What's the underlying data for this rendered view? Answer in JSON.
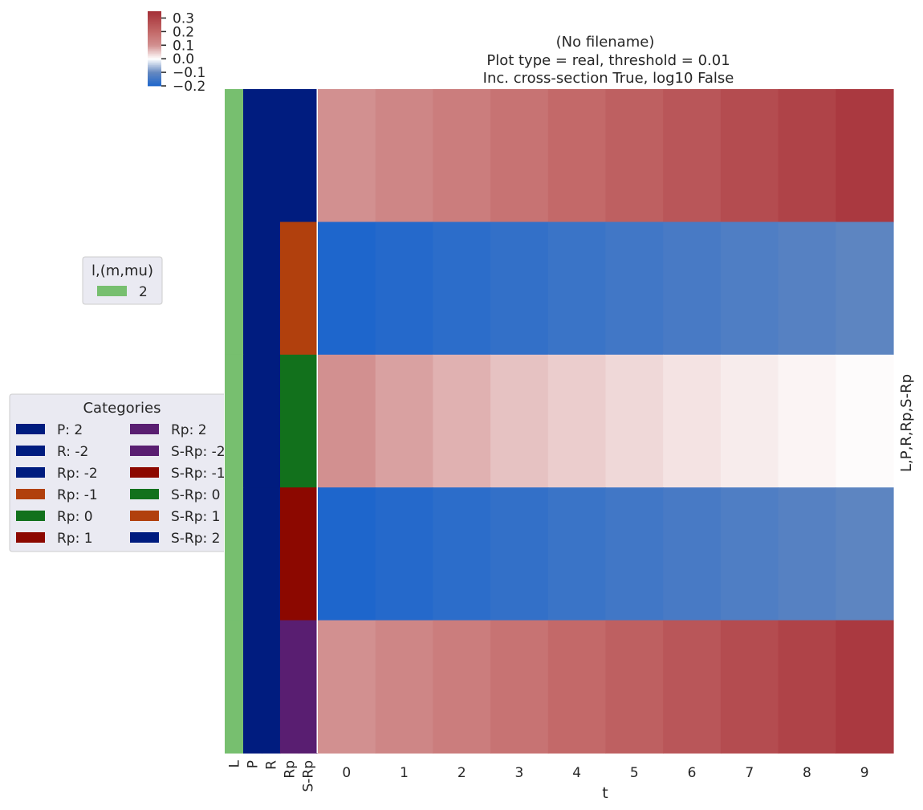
{
  "chart_data": {
    "type": "heatmap",
    "title_lines": [
      "(No filename)",
      "Plot type = real, threshold = 0.01",
      "Inc. cross-section True, log10 False"
    ],
    "xlabel": "t",
    "ylabel": "L,P,R,Rp,S-Rp",
    "x_ticks": [
      "0",
      "1",
      "2",
      "3",
      "4",
      "5",
      "6",
      "7",
      "8",
      "9"
    ],
    "row_colors_labels": [
      "L",
      "P",
      "R",
      "Rp",
      "S-Rp"
    ],
    "row_colors": [
      [
        "#77bf6f",
        "#001c7f",
        "#001c7f",
        "#001c7f",
        "#001c7f"
      ],
      [
        "#77bf6f",
        "#001c7f",
        "#001c7f",
        "#b1400d",
        "#b1400d"
      ],
      [
        "#77bf6f",
        "#001c7f",
        "#001c7f",
        "#12711c",
        "#12711c"
      ],
      [
        "#77bf6f",
        "#001c7f",
        "#001c7f",
        "#8c0800",
        "#8c0800"
      ],
      [
        "#77bf6f",
        "#001c7f",
        "#001c7f",
        "#591e71",
        "#591e71"
      ]
    ],
    "values": [
      [
        0.1,
        0.125,
        0.15,
        0.175,
        0.2,
        0.225,
        0.25,
        0.275,
        0.3,
        0.325
      ],
      [
        -0.2,
        -0.19,
        -0.18,
        -0.17,
        -0.16,
        -0.15,
        -0.14,
        -0.13,
        -0.12,
        -0.11
      ],
      [
        0.1,
        0.085,
        0.07,
        0.055,
        0.045,
        0.035,
        0.025,
        0.017,
        0.01,
        0.004
      ],
      [
        -0.2,
        -0.19,
        -0.18,
        -0.17,
        -0.16,
        -0.15,
        -0.14,
        -0.13,
        -0.12,
        -0.11
      ],
      [
        0.1,
        0.125,
        0.15,
        0.175,
        0.2,
        0.225,
        0.25,
        0.275,
        0.3,
        0.325
      ]
    ],
    "colorbar": {
      "min": -0.2,
      "max": 0.35,
      "ticks": [
        -0.2,
        -0.1,
        0.0,
        0.1,
        0.2,
        0.3
      ],
      "tick_labels": [
        "−0.2",
        "−0.1",
        "0.0",
        "0.1",
        "0.2",
        "0.3"
      ],
      "colormap": "diverging blue-white-red"
    },
    "legend_lm": {
      "title": "l,(m,mu)",
      "entries": [
        {
          "label": "2",
          "color": "#77bf6f"
        }
      ]
    },
    "legend_categories": {
      "title": "Categories",
      "entries": [
        {
          "label": "P: 2",
          "color": "#001c7f"
        },
        {
          "label": "R: -2",
          "color": "#001c7f"
        },
        {
          "label": "Rp: -2",
          "color": "#001c7f"
        },
        {
          "label": "Rp: -1",
          "color": "#b1400d"
        },
        {
          "label": "Rp: 0",
          "color": "#12711c"
        },
        {
          "label": "Rp: 1",
          "color": "#8c0800"
        },
        {
          "label": "Rp: 2",
          "color": "#591e71"
        },
        {
          "label": "S-Rp: -2",
          "color": "#591e71"
        },
        {
          "label": "S-Rp: -1",
          "color": "#8c0800"
        },
        {
          "label": "S-Rp: 0",
          "color": "#12711c"
        },
        {
          "label": "S-Rp: 1",
          "color": "#b1400d"
        },
        {
          "label": "S-Rp: 2",
          "color": "#001c7f"
        }
      ]
    }
  }
}
